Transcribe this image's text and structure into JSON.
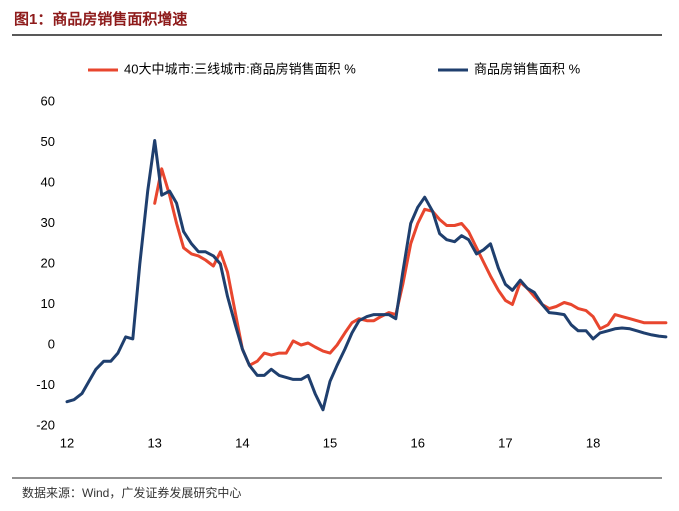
{
  "chart_data": {
    "type": "line",
    "title": "图1：商品房销售面积增速",
    "source": "数据来源：Wind，广发证券发展研究中心",
    "x": [
      12.0,
      12.08,
      12.17,
      12.25,
      12.33,
      12.42,
      12.5,
      12.58,
      12.67,
      12.75,
      12.83,
      12.92,
      13.0,
      13.08,
      13.17,
      13.25,
      13.33,
      13.42,
      13.5,
      13.58,
      13.67,
      13.75,
      13.83,
      13.92,
      14.0,
      14.08,
      14.17,
      14.25,
      14.33,
      14.42,
      14.5,
      14.58,
      14.67,
      14.75,
      14.83,
      14.92,
      15.0,
      15.08,
      15.17,
      15.25,
      15.33,
      15.42,
      15.5,
      15.58,
      15.67,
      15.75,
      15.83,
      15.92,
      16.0,
      16.08,
      16.17,
      16.25,
      16.33,
      16.42,
      16.5,
      16.58,
      16.67,
      16.75,
      16.83,
      16.92,
      17.0,
      17.08,
      17.17,
      17.25,
      17.33,
      17.42,
      17.5,
      17.58,
      17.67,
      17.75,
      17.83,
      17.92,
      18.0,
      18.08,
      18.17,
      18.25,
      18.33,
      18.42,
      18.5,
      18.58,
      18.67,
      18.75,
      18.83
    ],
    "series": [
      {
        "name": "40大中城市:三线城市:商品房销售面积 %",
        "color": "#e8462e",
        "values": [
          null,
          null,
          null,
          null,
          null,
          null,
          null,
          null,
          null,
          null,
          null,
          null,
          35,
          43.5,
          37,
          30,
          24,
          22.5,
          22,
          21,
          19.5,
          23,
          18,
          8,
          -1,
          -5,
          -4,
          -2,
          -2.5,
          -2,
          -2,
          1,
          0,
          0.5,
          -0.5,
          -1.5,
          -2,
          0,
          3,
          5.5,
          6.5,
          6,
          6,
          7,
          8,
          7.5,
          15,
          25,
          30,
          33.5,
          33,
          31,
          29.5,
          29.5,
          30,
          28,
          24,
          20.5,
          17,
          13.5,
          11,
          10,
          15.5,
          14,
          12,
          10,
          9,
          9.5,
          10.5,
          10,
          9,
          8.5,
          7,
          4,
          5,
          7.5,
          7,
          6.5,
          6,
          5.5,
          5.5,
          5.5,
          5.5
        ]
      },
      {
        "name": "商品房销售面积 %",
        "color": "#1f3f6e",
        "values": [
          -14,
          -13.5,
          -12,
          -9,
          -6,
          -4,
          -4,
          -2,
          2,
          1.5,
          20,
          38,
          50.5,
          37,
          38,
          35,
          28,
          25,
          23,
          23,
          22,
          20,
          12,
          5,
          -1,
          -5,
          -7.5,
          -7.5,
          -6,
          -7.5,
          -8,
          -8.5,
          -8.5,
          -7.5,
          -12,
          -16,
          -9,
          -5,
          -1,
          3,
          6,
          7,
          7.5,
          7.5,
          7.5,
          6.5,
          18,
          30,
          34,
          36.5,
          33,
          27.5,
          26,
          25.5,
          27,
          26,
          22.5,
          23.5,
          25,
          19,
          15,
          13.5,
          16,
          14,
          13,
          10,
          8,
          7.8,
          7.5,
          5,
          3.5,
          3.5,
          1.5,
          3,
          3.5,
          4,
          4.2,
          4,
          3.5,
          3,
          2.5,
          2.2,
          2
        ]
      }
    ],
    "xlim": [
      12,
      18.9
    ],
    "xticks": [
      12,
      13,
      14,
      15,
      16,
      17,
      18
    ],
    "ylim": [
      -20,
      60
    ],
    "yticks": [
      -20,
      -10,
      0,
      10,
      20,
      30,
      40,
      50,
      60
    ],
    "grid": false,
    "legend": "top"
  }
}
